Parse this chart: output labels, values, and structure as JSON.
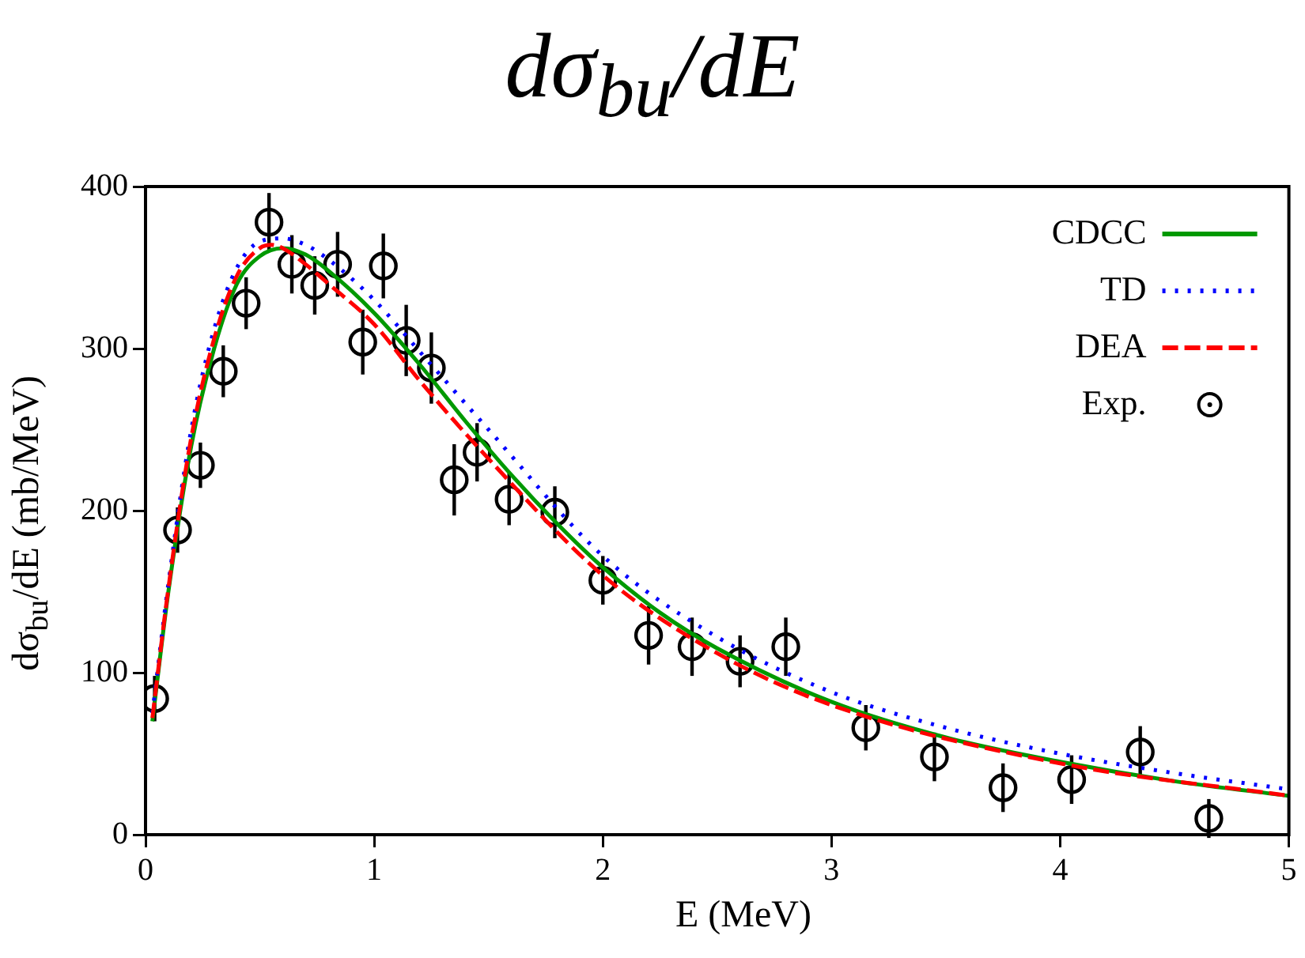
{
  "chart_data": {
    "type": "line",
    "title": "dσ$_{bu}$/dE",
    "xlabel": "E (MeV)",
    "ylabel": "dσ$_{bu}$/dE (mb/MeV)",
    "xlim": [
      0,
      5
    ],
    "xticks": [
      0,
      1,
      2,
      3,
      4,
      5
    ],
    "ylim": [
      0,
      400
    ],
    "yticks": [
      0,
      100,
      200,
      300,
      400
    ],
    "grid": false,
    "legend": "top right",
    "series": [
      {
        "name": "CDCC",
        "color": "#009900",
        "line_style": "solid",
        "marker": "none",
        "x": [
          0.03,
          0.1,
          0.2,
          0.3,
          0.4,
          0.5,
          0.6,
          0.7,
          0.8,
          1.0,
          1.2,
          1.4,
          1.6,
          1.8,
          2.0,
          2.25,
          2.5,
          3.0,
          3.5,
          4.0,
          4.5,
          5.0
        ],
        "values": [
          70,
          150,
          240,
          300,
          340,
          357,
          362,
          358,
          348,
          322,
          290,
          255,
          222,
          192,
          165,
          137,
          115,
          82,
          60,
          45,
          33,
          24
        ]
      },
      {
        "name": "TD",
        "color": "#0000ff",
        "line_style": "dotted",
        "marker": "none",
        "x": [
          0.03,
          0.1,
          0.2,
          0.3,
          0.4,
          0.5,
          0.6,
          0.7,
          0.8,
          1.0,
          1.2,
          1.5,
          2.0,
          2.5,
          3.0,
          3.5,
          4.0,
          4.5,
          5.0
        ],
        "values": [
          75,
          155,
          250,
          312,
          350,
          366,
          368,
          364,
          355,
          330,
          298,
          250,
          172,
          122,
          88,
          66,
          50,
          38,
          28
        ]
      },
      {
        "name": "DEA",
        "color": "#ff0000",
        "line_style": "dashed",
        "marker": "none",
        "x": [
          0.03,
          0.1,
          0.2,
          0.3,
          0.4,
          0.5,
          0.55,
          0.6,
          0.7,
          0.8,
          1.0,
          1.2,
          1.5,
          2.0,
          2.5,
          3.0,
          4.0,
          5.0
        ],
        "values": [
          72,
          152,
          245,
          306,
          345,
          362,
          364,
          362,
          352,
          340,
          315,
          280,
          232,
          160,
          112,
          80,
          44,
          24
        ]
      },
      {
        "name": "Exp.",
        "type": "scatter",
        "color": "#000000",
        "marker": "circle",
        "x": [
          0.04,
          0.14,
          0.24,
          0.34,
          0.44,
          0.54,
          0.64,
          0.74,
          0.84,
          0.95,
          1.04,
          1.14,
          1.25,
          1.35,
          1.45,
          1.59,
          1.79,
          2.0,
          2.2,
          2.39,
          2.6,
          2.8,
          3.15,
          3.45,
          3.75,
          4.05,
          4.35,
          4.65
        ],
        "values": [
          84,
          188,
          228,
          286,
          328,
          378,
          352,
          339,
          352,
          304,
          351,
          305,
          288,
          219,
          236,
          207,
          199,
          157,
          123,
          116,
          107,
          116,
          66,
          48,
          29,
          34,
          51,
          10
        ],
        "errors": [
          14,
          14,
          14,
          16,
          16,
          18,
          18,
          18,
          20,
          20,
          20,
          22,
          22,
          22,
          18,
          16,
          16,
          15,
          18,
          18,
          16,
          18,
          14,
          15,
          15,
          15,
          16,
          12
        ]
      }
    ]
  }
}
